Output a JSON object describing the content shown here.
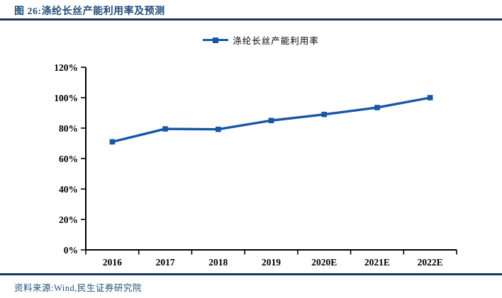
{
  "figure": {
    "title": "图 26:涤纶长丝产能利用率及预测",
    "source": "资料来源:Wind,民生证券研究院"
  },
  "legend": {
    "label": "涤纶长丝产能利用率"
  },
  "colors": {
    "accent_blue": "#1F4E79",
    "rule_navy": "#17375E",
    "line_blue": "#1757A5",
    "axis_black": "#000000"
  },
  "chart_data": {
    "type": "line",
    "title": "涤纶长丝产能利用率及预测",
    "categories": [
      "2016",
      "2017",
      "2018",
      "2019",
      "2020E",
      "2021E",
      "2022E"
    ],
    "series": [
      {
        "name": "涤纶长丝产能利用率",
        "values": [
          71,
          79.5,
          79.2,
          85,
          89,
          93.5,
          100
        ]
      }
    ],
    "xlabel": "",
    "ylabel": "",
    "ylim": [
      0,
      120
    ],
    "ytick_step": 20,
    "yticks": [
      "0%",
      "20%",
      "40%",
      "60%",
      "80%",
      "100%",
      "120%"
    ],
    "ytick_suffix": "%",
    "grid": false,
    "legend_position": "top-center",
    "marker": "square"
  }
}
